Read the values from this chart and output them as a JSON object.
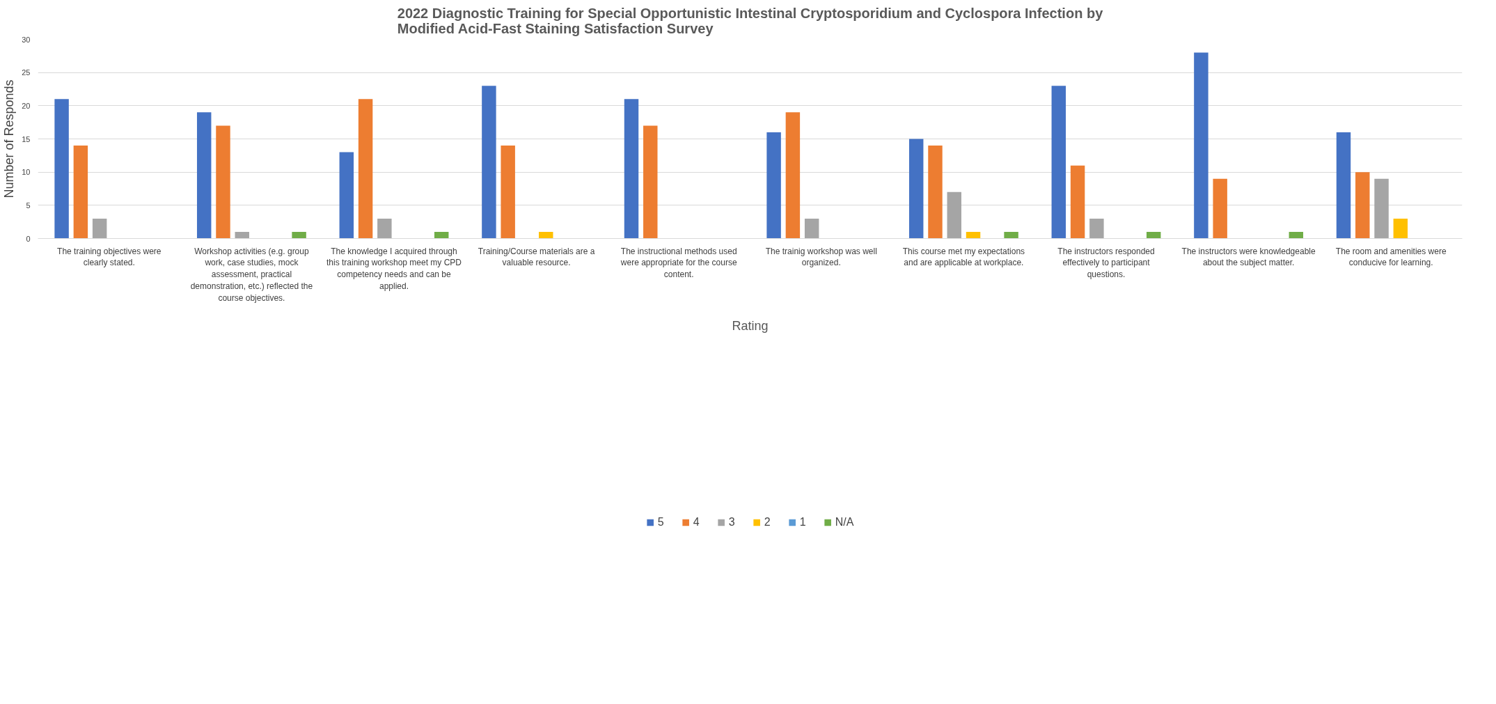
{
  "chart_data": {
    "type": "bar",
    "title": "2022 Diagnostic Training for Special Opportunistic Intestinal Cryptosporidium and Cyclospora Infection by Modified Acid-Fast Staining Satisfaction Survey",
    "xlabel": "Rating",
    "ylabel": "Number of Responds",
    "categories": [
      "The training objectives were clearly stated.",
      "Workshop activities (e.g. group work, case studies, mock assessment, practical demonstration, etc.) reflected the course objectives.",
      "The knowledge I acquired through this training workshop meet my CPD competency needs and can be applied.",
      "Training/Course materials are a valuable resource.",
      "The instructional methods used were appropriate for the course content.",
      "The trainig workshop was well organized.",
      "This course met my expectations and are applicable at workplace.",
      "The instructors responded effectively to participant questions.",
      "The instructors were knowledgeable about the subject matter.",
      "The room and amenities were conducive for learning."
    ],
    "series": [
      {
        "name": "5",
        "color": "#4472c4",
        "values": [
          21,
          19,
          13,
          23,
          21,
          16,
          15,
          23,
          28,
          16
        ]
      },
      {
        "name": "4",
        "color": "#ed7d31",
        "values": [
          14,
          17,
          21,
          14,
          17,
          19,
          14,
          11,
          9,
          10
        ]
      },
      {
        "name": "3",
        "color": "#a5a5a5",
        "values": [
          3,
          1,
          3,
          null,
          null,
          3,
          7,
          3,
          null,
          9
        ]
      },
      {
        "name": "2",
        "color": "#ffc000",
        "values": [
          null,
          null,
          null,
          1,
          null,
          null,
          1,
          null,
          null,
          3
        ]
      },
      {
        "name": "1",
        "color": "#5b9bd5",
        "values": [
          null,
          null,
          null,
          null,
          null,
          null,
          null,
          null,
          null,
          null
        ]
      },
      {
        "name": "N/A",
        "color": "#70ad47",
        "values": [
          null,
          1,
          1,
          null,
          null,
          null,
          1,
          1,
          1,
          null
        ]
      }
    ],
    "ylim": [
      0,
      30
    ],
    "yticks": [
      0,
      5,
      10,
      15,
      20,
      25,
      30
    ],
    "grid": "y",
    "legend": "bottom"
  }
}
